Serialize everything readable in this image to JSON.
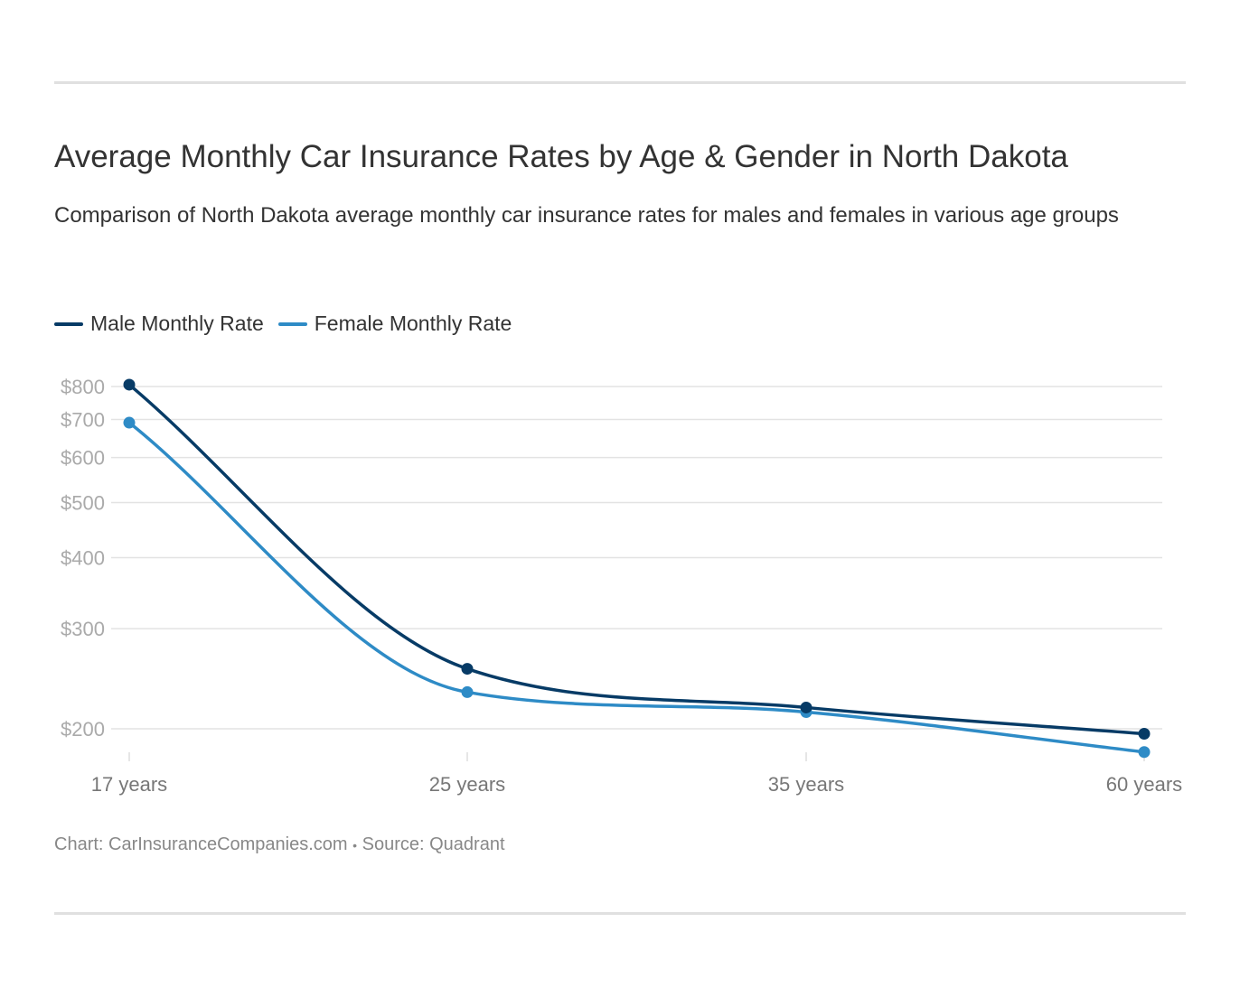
{
  "title": "Average Monthly Car Insurance Rates by Age & Gender in North Dakota",
  "subtitle": "Comparison of North Dakota average monthly car insurance rates for males and females in various age groups",
  "footer": {
    "chart": "Chart: CarInsuranceCompanies.com",
    "separator": "•",
    "source": "Source: Quadrant"
  },
  "chart_data": {
    "type": "line",
    "categories": [
      "17 years",
      "25 years",
      "35 years",
      "60 years"
    ],
    "series": [
      {
        "name": "Male Monthly Rate",
        "color": "#073b66",
        "values": [
          806,
          255,
          218,
          196
        ]
      },
      {
        "name": "Female Monthly Rate",
        "color": "#2e8bc6",
        "values": [
          691,
          232,
          214,
          182
        ]
      }
    ],
    "y_scale": "log",
    "y_ticks": [
      200,
      300,
      400,
      500,
      600,
      700,
      800
    ],
    "y_tick_labels": [
      "$200",
      "$300",
      "$400",
      "$500",
      "$600",
      "$700",
      "$800"
    ],
    "grid": true,
    "legend": "top-left",
    "curve": "smooth"
  }
}
